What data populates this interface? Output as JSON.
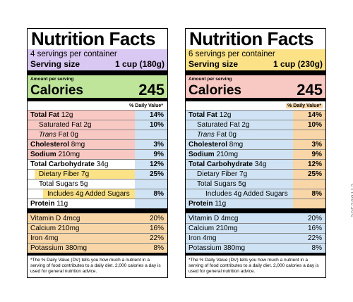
{
  "colors": {
    "purple": "#d9c8f1",
    "yellow": "#fbe287",
    "green": "#bfe59b",
    "pink": "#f8c8c3",
    "blue": "#cfe3f4",
    "orange": "#f8d6a7",
    "white": "#ffffff"
  },
  "labels": [
    {
      "title": "Nutrition Facts",
      "servings": "4 servings per container",
      "serving_size_label": "Serving size",
      "serving_size_value": "1 cup (180g)",
      "amount_per_serving": "Amount per serving",
      "calories_label": "Calories",
      "calories_value": "245",
      "dv_header": "% Daily Value*",
      "nutrients": [
        {
          "bold": "Total Fat",
          "rest": " 12g",
          "pct": "14%"
        },
        {
          "bold": "",
          "rest": "Saturated Fat 2g",
          "pct": "10%"
        },
        {
          "italic": "Trans",
          "rest": " Fat 0g",
          "pct": ""
        },
        {
          "bold": "Cholesterol",
          "rest": " 8mg",
          "pct": "3%"
        },
        {
          "bold": "Sodium",
          "rest": " 210mg",
          "pct": "9%"
        },
        {
          "bold": "Total Carbohydrate",
          "rest": " 34g",
          "pct": "12%"
        },
        {
          "bold": "",
          "rest": "Dietary Fiber 7g",
          "pct": "25%"
        },
        {
          "bold": "",
          "rest": "Total Sugars 5g",
          "pct": ""
        },
        {
          "bold": "",
          "rest": "Includes 4g Added Sugars",
          "pct": "8%"
        },
        {
          "bold": "Protein",
          "rest": " 11g",
          "pct": ""
        }
      ],
      "vitamins": [
        {
          "name": "Vitamin D 4mcg",
          "pct": "20%"
        },
        {
          "name": "Calcium 210mg",
          "pct": "16%"
        },
        {
          "name": "Iron 4mg",
          "pct": "22%"
        },
        {
          "name": "Potassium 380mg",
          "pct": "8%"
        }
      ],
      "footnote": "*The % Daily Value (DV) tells you how much a nutrient in a serving of food contributes to a daily diet. 2,000 calories a day is used for general nutrition advice."
    },
    {
      "title": "Nutrition Facts",
      "servings": "6 servings per container",
      "serving_size_label": "Serving size",
      "serving_size_value": "1 cup (230g)",
      "amount_per_serving": "Amount per serving",
      "calories_label": "Calories",
      "calories_value": "245",
      "dv_header": "% Daily Value*",
      "nutrients": [
        {
          "bold": "Total Fat",
          "rest": " 12g",
          "pct": "14%"
        },
        {
          "bold": "",
          "rest": "Saturated Fat 2g",
          "pct": "10%"
        },
        {
          "italic": "Trans",
          "rest": " Fat 0g",
          "pct": ""
        },
        {
          "bold": "Cholesterol",
          "rest": " 8mg",
          "pct": "3%"
        },
        {
          "bold": "Sodium",
          "rest": " 210mg",
          "pct": "9%"
        },
        {
          "bold": "Total Carbohydrate",
          "rest": " 34g",
          "pct": "12%"
        },
        {
          "bold": "",
          "rest": "Dietary Fiber 7g",
          "pct": "25%"
        },
        {
          "bold": "",
          "rest": "Total Sugars 5g",
          "pct": ""
        },
        {
          "bold": "",
          "rest": "Includes 4g Added Sugars",
          "pct": "8%"
        },
        {
          "bold": "Protein",
          "rest": " 11g",
          "pct": ""
        }
      ],
      "vitamins": [
        {
          "name": "Vitamin D 4mcg",
          "pct": "20%"
        },
        {
          "name": "Calcium 210mg",
          "pct": "16%"
        },
        {
          "name": "Iron 4mg",
          "pct": "22%"
        },
        {
          "name": "Potassium 380mg",
          "pct": "8%"
        }
      ],
      "footnote": "*The % Daily Value (DV) tells you how much a nutrient in a serving of food contributes to a daily diet. 2,000 calories a day is used for general nutrition advice."
    }
  ],
  "watermark": "305388113"
}
